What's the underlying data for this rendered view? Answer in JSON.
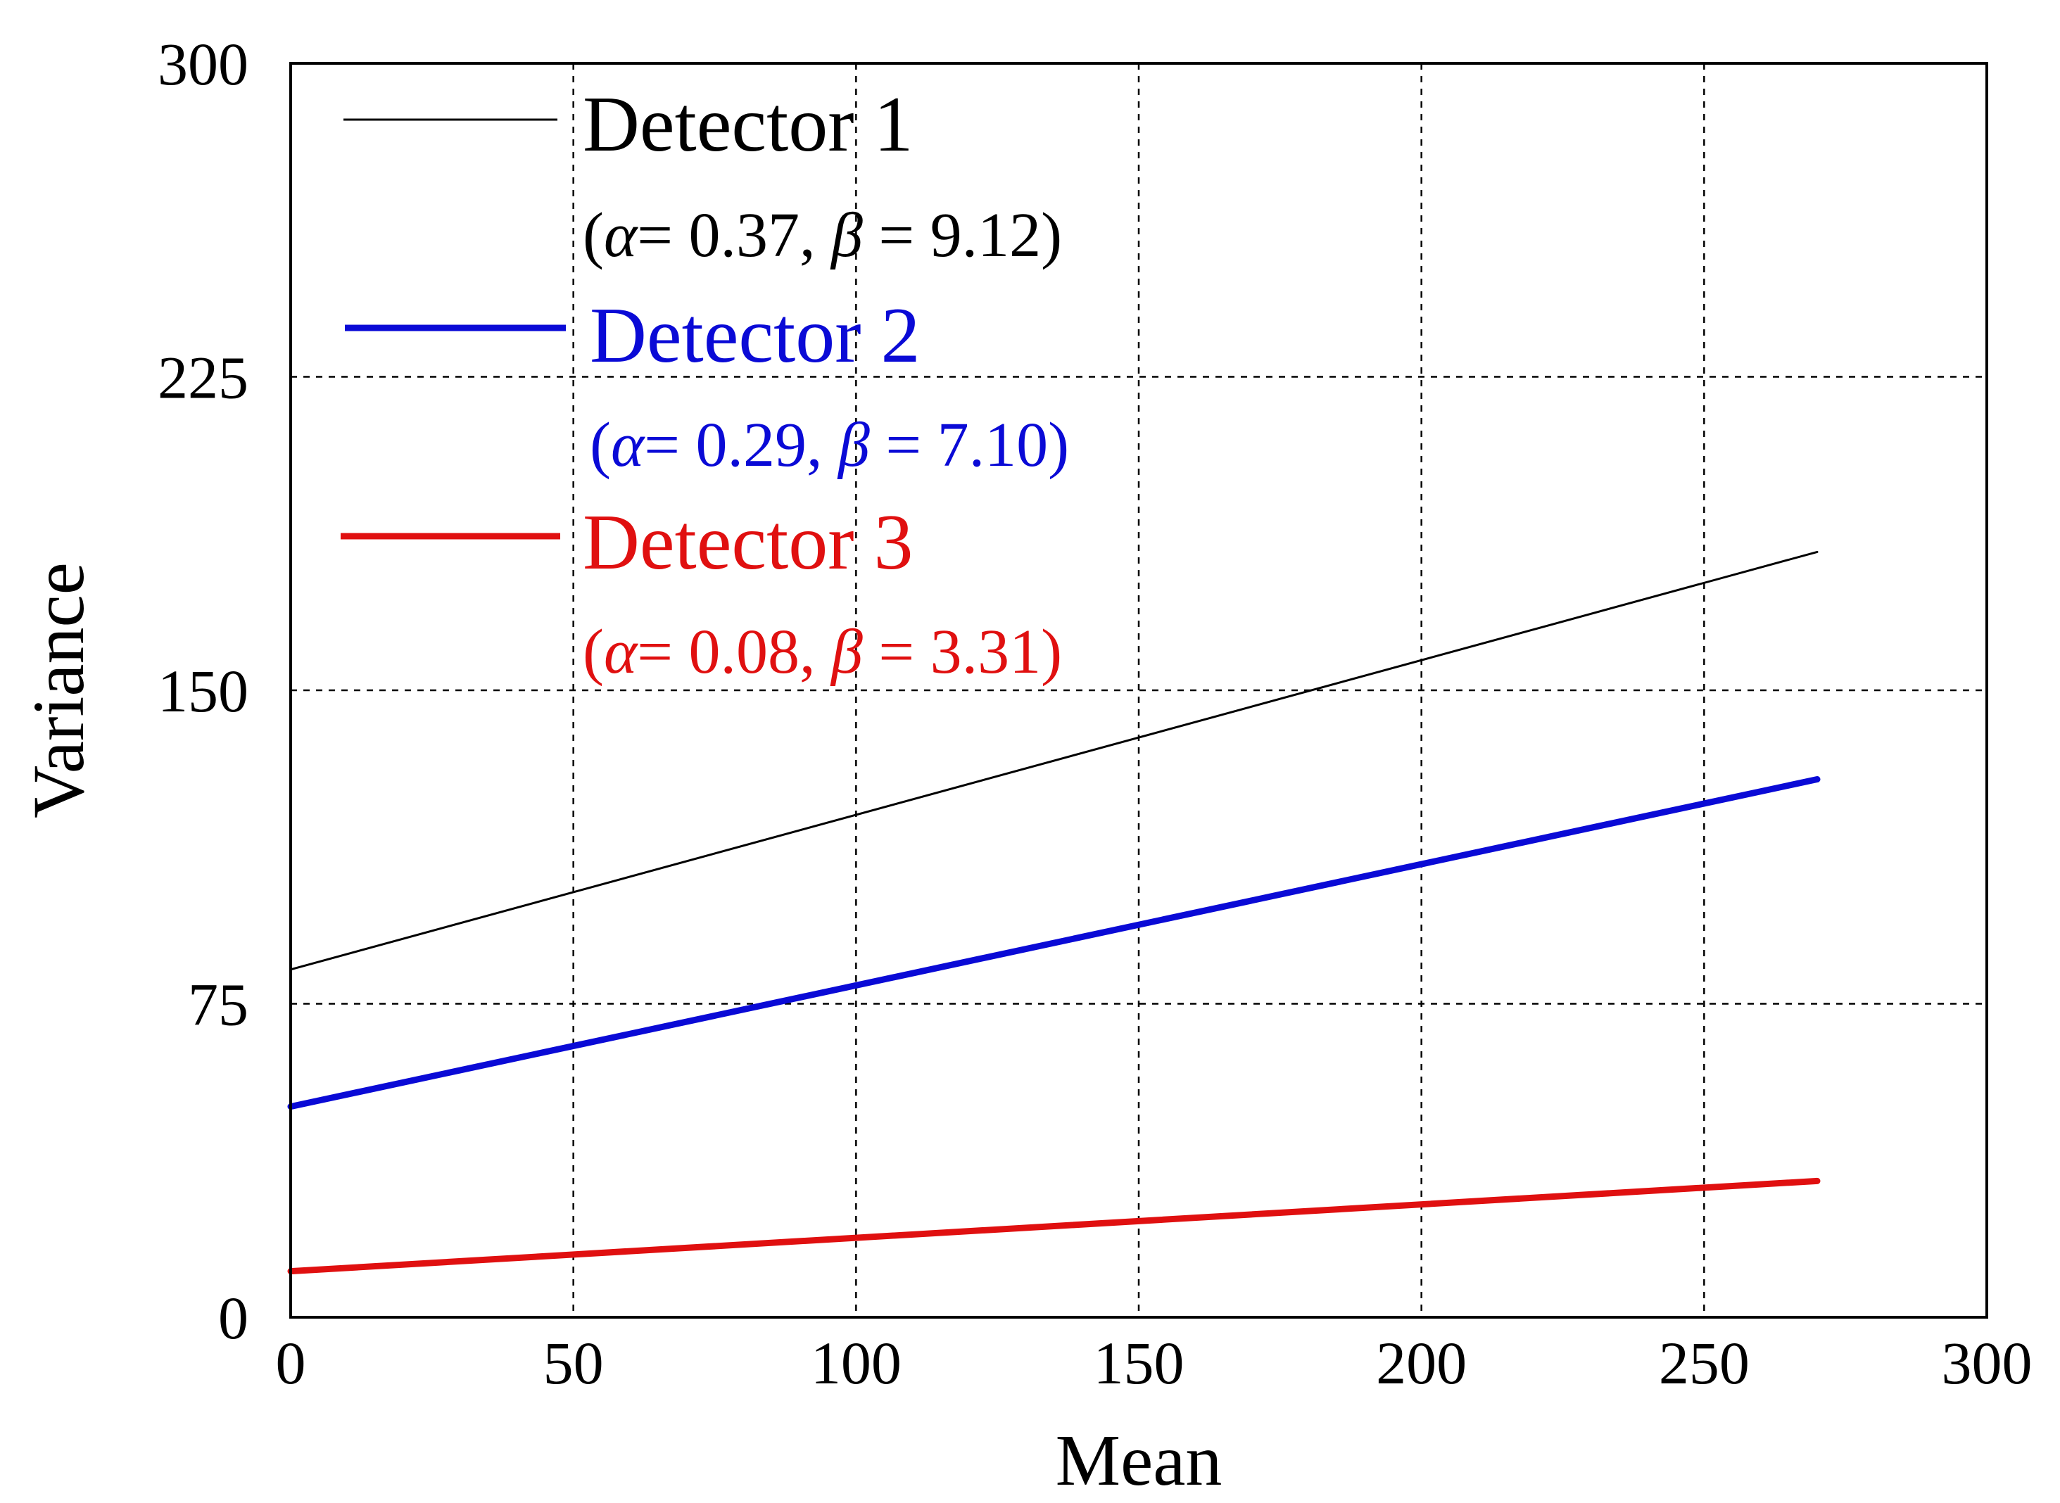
{
  "chart_data": {
    "type": "line",
    "title": "",
    "xlabel": "Mean",
    "ylabel": "Variance",
    "xlim": [
      0,
      300
    ],
    "ylim": [
      0,
      300
    ],
    "xticks": [
      0,
      50,
      100,
      150,
      200,
      250,
      300
    ],
    "yticks": [
      0,
      75,
      150,
      225,
      300
    ],
    "xtick_labels": [
      "0",
      "50",
      "100",
      "150",
      "200",
      "250",
      "300"
    ],
    "ytick_labels": [
      "0",
      "75",
      "150",
      "225",
      "300"
    ],
    "grid": true,
    "legend_position": "top-left",
    "series": [
      {
        "name": "Detector 1",
        "params_text": "(α= 0.37, β = 9.12)",
        "params": {
          "alpha_label": "α",
          "alpha": "0.37",
          "beta_label": "β",
          "beta": "9.12"
        },
        "color": "#000000",
        "x": [
          0,
          270
        ],
        "y": [
          83.2,
          183.1
        ]
      },
      {
        "name": "Detector 2",
        "params_text": "(α= 0.29, β = 7.10)",
        "params": {
          "alpha_label": "α",
          "alpha": "0.29",
          "beta_label": "β",
          "beta": "7.10"
        },
        "color": "#0a0ad6",
        "x": [
          0,
          270
        ],
        "y": [
          50.4,
          128.7
        ]
      },
      {
        "name": "Detector 3",
        "params_text": "(α= 0.08, β = 3.31)",
        "params": {
          "alpha_label": "α",
          "alpha": "0.08",
          "beta_label": "β",
          "beta": "3.31"
        },
        "color": "#e01010",
        "x": [
          0,
          270
        ],
        "y": [
          11.0,
          32.6
        ]
      }
    ]
  }
}
